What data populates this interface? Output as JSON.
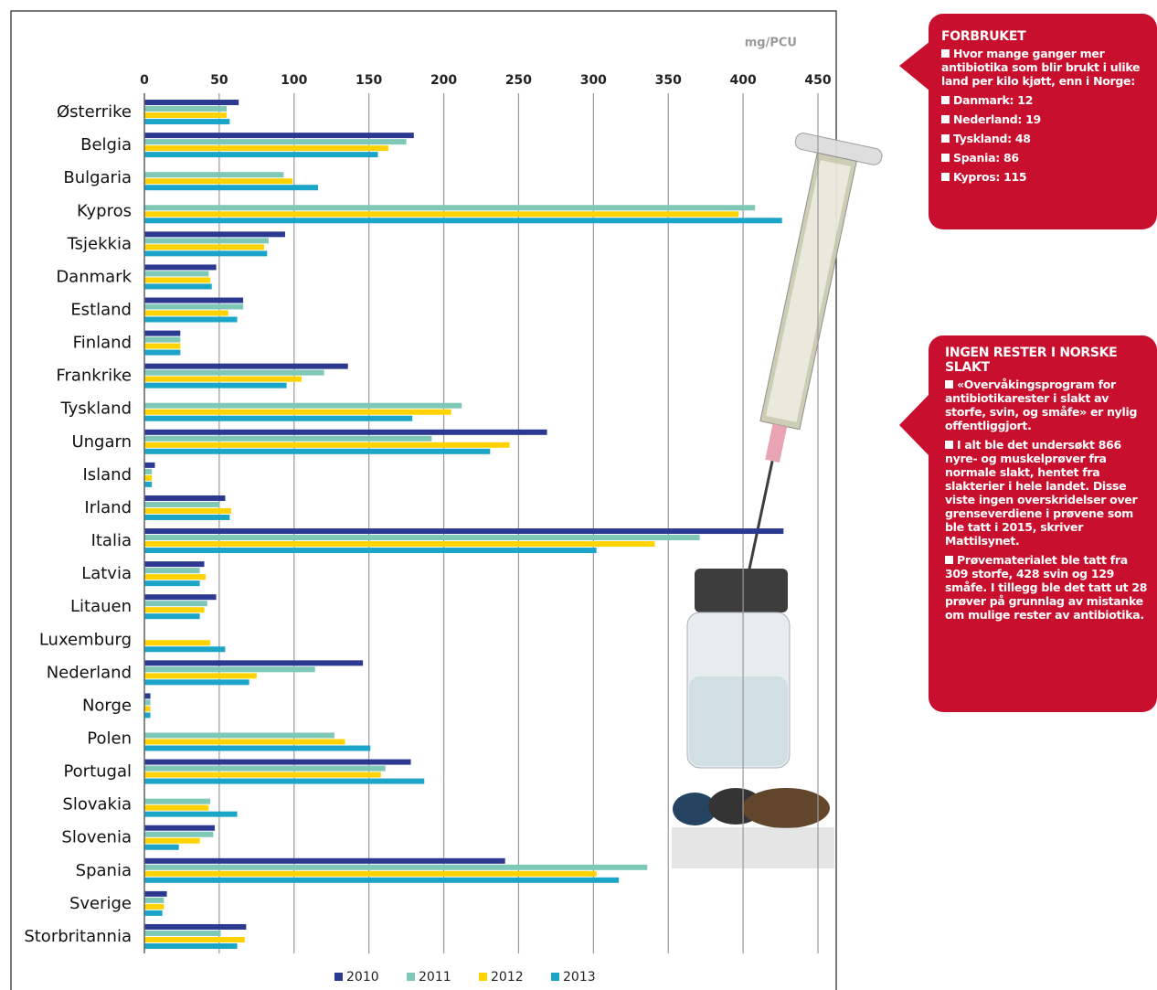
{
  "chart_data": {
    "type": "hbar",
    "unit_label": "mg/PCU",
    "categories": [
      "Østerrike",
      "Belgia",
      "Bulgaria",
      "Kypros",
      "Tsjekkia",
      "Danmark",
      "Estland",
      "Finland",
      "Frankrike",
      "Tyskland",
      "Ungarn",
      "Island",
      "Irland",
      "Italia",
      "Latvia",
      "Litauen",
      "Luxemburg",
      "Nederland",
      "Norge",
      "Polen",
      "Portugal",
      "Slovakia",
      "Slovenia",
      "Spania",
      "Sverige",
      "Storbritannia"
    ],
    "series": [
      {
        "name": "2010",
        "color": "#2b3990",
        "values": [
          63,
          180,
          null,
          null,
          94,
          48,
          66,
          24,
          136,
          null,
          269,
          7,
          54,
          427,
          40,
          48,
          null,
          146,
          4,
          null,
          178,
          null,
          47,
          241,
          15,
          68
        ]
      },
      {
        "name": "2011",
        "color": "#7fc8b8",
        "values": [
          55,
          175,
          93,
          408,
          83,
          43,
          66,
          24,
          120,
          212,
          192,
          5,
          50,
          371,
          37,
          42,
          null,
          114,
          4,
          127,
          161,
          44,
          46,
          336,
          13,
          51
        ]
      },
      {
        "name": "2012",
        "color": "#ffd200",
        "values": [
          55,
          163,
          99,
          397,
          80,
          44,
          56,
          24,
          105,
          205,
          244,
          5,
          58,
          341,
          41,
          40,
          44,
          75,
          4,
          134,
          158,
          43,
          37,
          302,
          13,
          67
        ]
      },
      {
        "name": "2013",
        "color": "#1ba5c8",
        "values": [
          57,
          156,
          116,
          426,
          82,
          45,
          62,
          24,
          95,
          179,
          231,
          5,
          57,
          302,
          37,
          37,
          54,
          70,
          4,
          151,
          187,
          62,
          23,
          317,
          12,
          62
        ]
      }
    ],
    "xlim": [
      0,
      450
    ],
    "xticks": [
      0,
      50,
      100,
      150,
      200,
      250,
      300,
      350,
      400,
      450
    ],
    "grid": true,
    "legend": "bottom"
  },
  "info_boxes": [
    {
      "title": "FORBRUKET",
      "items": [
        "Hvor mange ganger mer antibiotika som blir brukt i ulike land per kilo kjøtt, enn i Norge:",
        "Danmark: 12",
        "Nederland: 19",
        "Tyskland: 48",
        "Spania: 86",
        "Kypros: 115"
      ]
    },
    {
      "title": "INGEN RESTER I NORSKE SLAKT",
      "items": [
        "«Overvåkingsprogram for antibiotikarester i slakt av storfe, svin, og småfe» er nylig offentliggjort.",
        "I alt ble det undersøkt 866 nyre- og muskelprøver fra normale slakt, hentet fra slakterier i hele landet. Disse viste ingen overskridelser over grenseverdiene i prøvene som ble tatt i 2015, skriver Mattilsynet.",
        "Prøvematerialet ble tatt fra 309 storfe, 428 svin og 129 småfe. I tillegg ble det tatt ut 28 prøver på grunnlag av mistanke om mulige rester av antibiotika."
      ]
    }
  ]
}
